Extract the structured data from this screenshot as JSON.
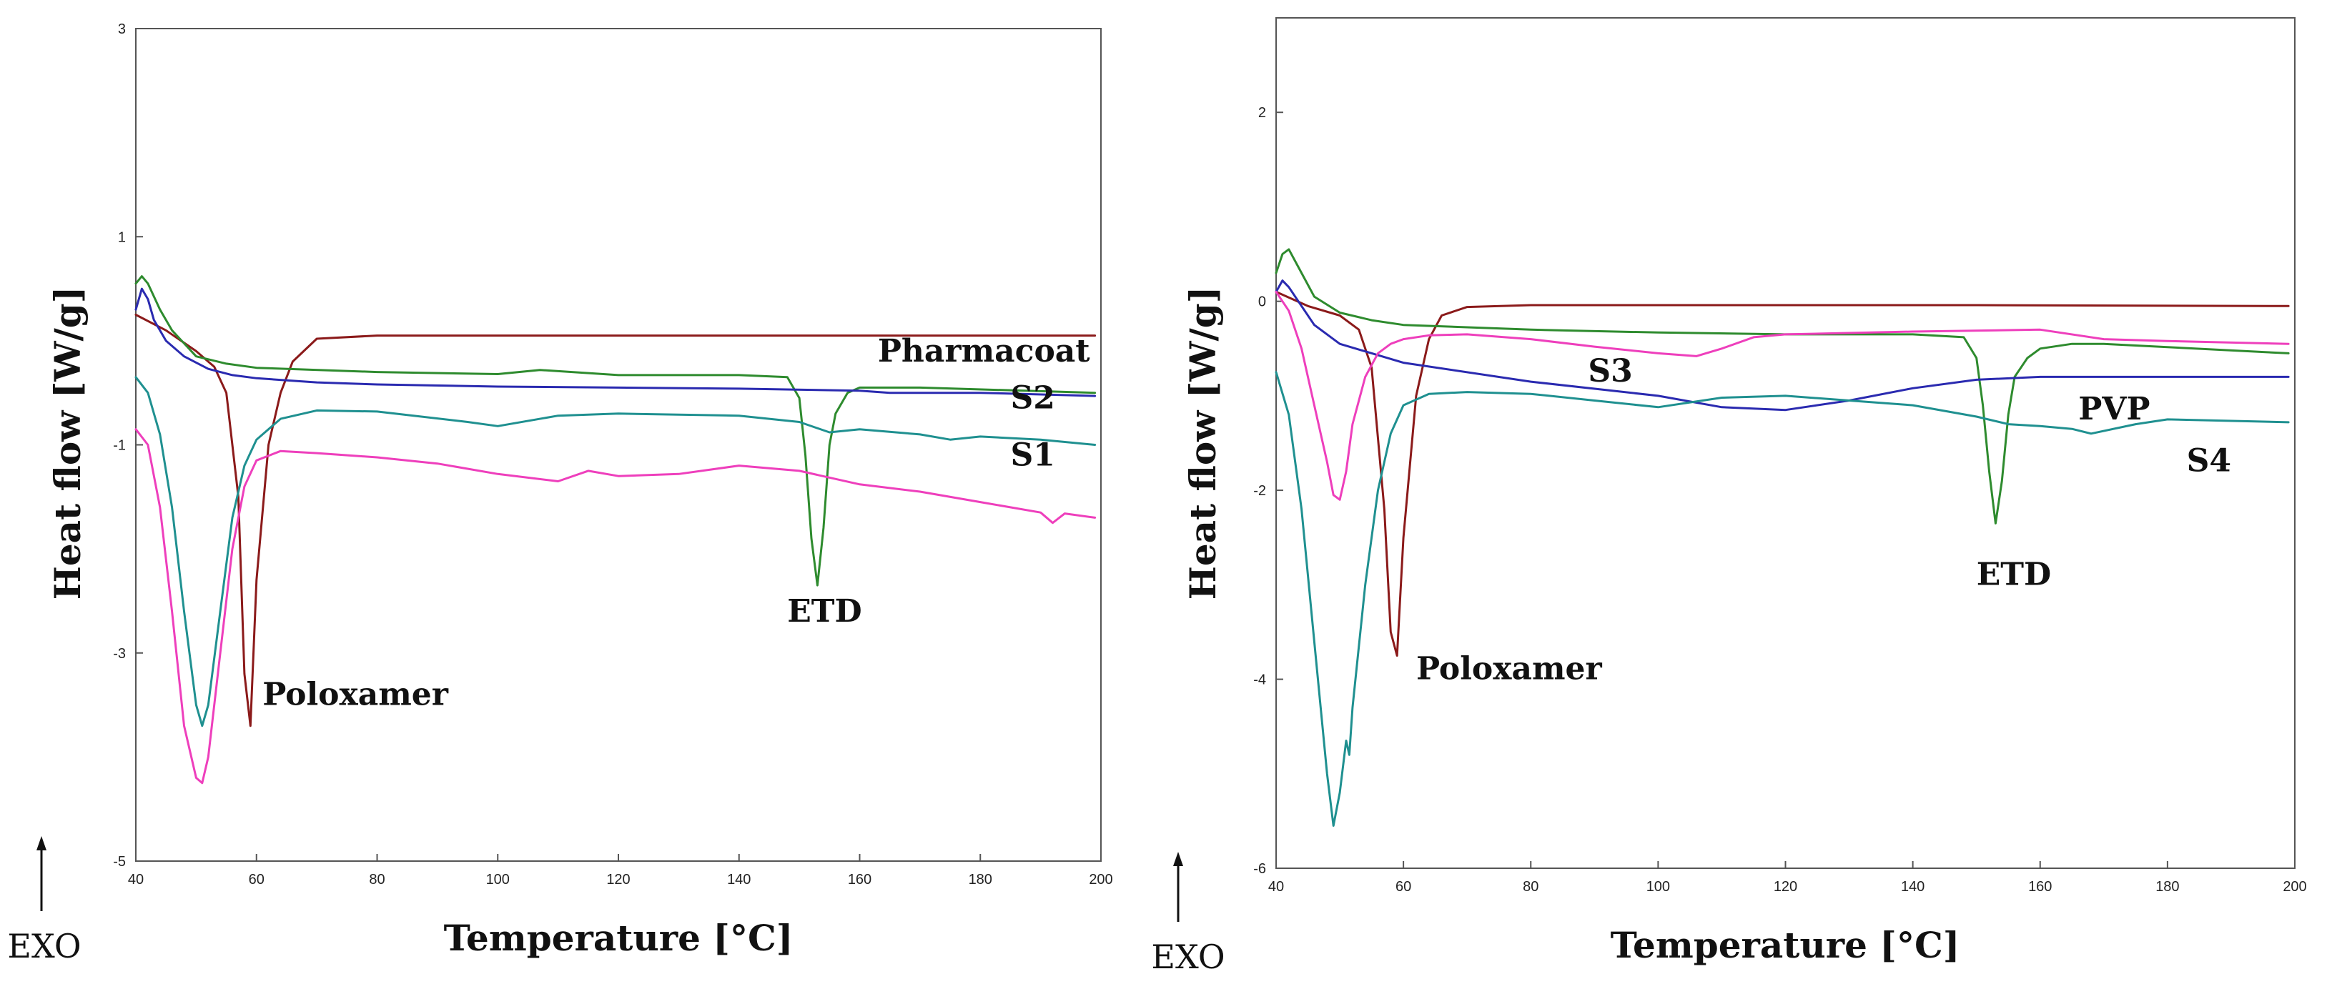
{
  "chart_data": [
    {
      "type": "line",
      "xlabel": "Temperature [°C]",
      "ylabel": "Heat flow [W/g]",
      "xlim": [
        40,
        200
      ],
      "ylim": [
        -5,
        3
      ],
      "xticks": [
        40,
        60,
        80,
        100,
        120,
        140,
        160,
        180,
        200
      ],
      "yticks": [
        3,
        1,
        -1,
        -3,
        -5
      ],
      "grid": false,
      "exo_label": "EXO",
      "annotations": [
        {
          "text": "Pharmacoat",
          "x": 163,
          "y": -0.2
        },
        {
          "text": "S2",
          "x": 185,
          "y": -0.65
        },
        {
          "text": "S1",
          "x": 185,
          "y": -1.2
        },
        {
          "text": "ETD",
          "x": 148,
          "y": -2.7
        },
        {
          "text": "Poloxamer",
          "x": 61,
          "y": -3.5
        }
      ],
      "series": [
        {
          "name": "Poloxamer",
          "color": "#8b1a1a",
          "x": [
            40,
            45,
            50,
            53,
            55,
            57,
            58,
            59,
            60,
            62,
            64,
            66,
            70,
            80,
            100,
            150,
            199
          ],
          "y": [
            0.25,
            0.1,
            -0.1,
            -0.25,
            -0.5,
            -1.5,
            -3.2,
            -3.7,
            -2.3,
            -1.0,
            -0.5,
            -0.2,
            0.02,
            0.05,
            0.05,
            0.05,
            0.05
          ]
        },
        {
          "name": "ETD",
          "color": "#2e8b2e",
          "x": [
            40,
            41,
            42,
            44,
            46,
            50,
            55,
            60,
            80,
            100,
            107,
            120,
            140,
            148,
            150,
            151,
            152,
            153,
            154,
            155,
            156,
            158,
            160,
            170,
            199
          ],
          "y": [
            0.55,
            0.62,
            0.55,
            0.3,
            0.1,
            -0.15,
            -0.22,
            -0.26,
            -0.3,
            -0.32,
            -0.28,
            -0.33,
            -0.33,
            -0.35,
            -0.55,
            -1.1,
            -1.9,
            -2.35,
            -1.8,
            -1.0,
            -0.7,
            -0.5,
            -0.45,
            -0.45,
            -0.5
          ]
        },
        {
          "name": "Pharmacoat",
          "color": "#2a2ab0",
          "x": [
            40,
            41,
            42,
            43,
            45,
            48,
            52,
            56,
            60,
            70,
            80,
            100,
            120,
            140,
            160,
            165,
            180,
            199
          ],
          "y": [
            0.3,
            0.5,
            0.4,
            0.2,
            0.0,
            -0.15,
            -0.27,
            -0.33,
            -0.36,
            -0.4,
            -0.42,
            -0.44,
            -0.45,
            -0.46,
            -0.48,
            -0.5,
            -0.5,
            -0.53
          ]
        },
        {
          "name": "S2",
          "color": "#1f9090",
          "x": [
            40,
            42,
            44,
            46,
            48,
            50,
            51,
            52,
            54,
            56,
            58,
            60,
            64,
            70,
            80,
            95,
            100,
            110,
            120,
            140,
            150,
            155,
            160,
            170,
            175,
            180,
            190,
            199
          ],
          "y": [
            -0.35,
            -0.5,
            -0.9,
            -1.6,
            -2.6,
            -3.5,
            -3.7,
            -3.5,
            -2.6,
            -1.7,
            -1.2,
            -0.95,
            -0.75,
            -0.67,
            -0.68,
            -0.78,
            -0.82,
            -0.72,
            -0.7,
            -0.72,
            -0.78,
            -0.88,
            -0.85,
            -0.9,
            -0.95,
            -0.92,
            -0.95,
            -1.0
          ]
        },
        {
          "name": "S1",
          "color": "#ee3fbc",
          "x": [
            40,
            42,
            44,
            46,
            48,
            50,
            51,
            52,
            54,
            56,
            58,
            60,
            64,
            70,
            80,
            90,
            100,
            110,
            115,
            120,
            130,
            140,
            150,
            160,
            170,
            180,
            190,
            192,
            194,
            199
          ],
          "y": [
            -0.85,
            -1.0,
            -1.6,
            -2.6,
            -3.7,
            -4.2,
            -4.25,
            -4.0,
            -3.0,
            -2.0,
            -1.4,
            -1.15,
            -1.06,
            -1.08,
            -1.12,
            -1.18,
            -1.28,
            -1.35,
            -1.25,
            -1.3,
            -1.28,
            -1.2,
            -1.25,
            -1.38,
            -1.45,
            -1.55,
            -1.65,
            -1.75,
            -1.66,
            -1.7
          ]
        }
      ]
    },
    {
      "type": "line",
      "xlabel": "Temperature [°C]",
      "ylabel": "Heat flow [W/g]",
      "xlim": [
        40,
        200
      ],
      "ylim": [
        -6,
        3
      ],
      "xticks": [
        40,
        60,
        80,
        100,
        120,
        140,
        160,
        180,
        200
      ],
      "yticks": [
        2,
        0,
        -2,
        -4,
        -6
      ],
      "grid": false,
      "exo_label": "EXO",
      "annotations": [
        {
          "text": "S3",
          "x": 89,
          "y": -0.85
        },
        {
          "text": "PVP",
          "x": 166,
          "y": -1.25
        },
        {
          "text": "S4",
          "x": 183,
          "y": -1.8
        },
        {
          "text": "ETD",
          "x": 150,
          "y": -3.0
        },
        {
          "text": "Poloxamer",
          "x": 62,
          "y": -4.0
        }
      ],
      "series": [
        {
          "name": "Poloxamer",
          "color": "#8b1a1a",
          "x": [
            40,
            45,
            50,
            53,
            55,
            57,
            58,
            59,
            60,
            62,
            64,
            66,
            70,
            80,
            100,
            150,
            199
          ],
          "y": [
            0.1,
            -0.05,
            -0.15,
            -0.3,
            -0.7,
            -2.2,
            -3.5,
            -3.75,
            -2.5,
            -1.0,
            -0.4,
            -0.15,
            -0.06,
            -0.04,
            -0.04,
            -0.04,
            -0.05
          ]
        },
        {
          "name": "ETD",
          "color": "#2e8b2e",
          "x": [
            40,
            41,
            42,
            44,
            46,
            50,
            55,
            60,
            80,
            100,
            120,
            140,
            148,
            150,
            151,
            152,
            153,
            154,
            155,
            156,
            158,
            160,
            165,
            170,
            199
          ],
          "y": [
            0.3,
            0.5,
            0.55,
            0.3,
            0.05,
            -0.12,
            -0.2,
            -0.25,
            -0.3,
            -0.33,
            -0.35,
            -0.35,
            -0.38,
            -0.6,
            -1.1,
            -1.8,
            -2.35,
            -1.9,
            -1.2,
            -0.8,
            -0.6,
            -0.5,
            -0.45,
            -0.45,
            -0.55
          ]
        },
        {
          "name": "PVP",
          "color": "#2a2ab0",
          "x": [
            40,
            41,
            42,
            44,
            46,
            50,
            60,
            80,
            100,
            110,
            120,
            130,
            140,
            150,
            160,
            170,
            180,
            199
          ],
          "y": [
            0.1,
            0.22,
            0.15,
            -0.05,
            -0.25,
            -0.45,
            -0.65,
            -0.85,
            -1.0,
            -1.12,
            -1.15,
            -1.05,
            -0.92,
            -0.83,
            -0.8,
            -0.8,
            -0.8,
            -0.8
          ]
        },
        {
          "name": "S4",
          "color": "#1f9090",
          "x": [
            40,
            42,
            44,
            46,
            48,
            49,
            50,
            51,
            51.5,
            52,
            54,
            56,
            58,
            60,
            64,
            70,
            80,
            90,
            100,
            110,
            120,
            130,
            140,
            150,
            155,
            160,
            165,
            168,
            175,
            180,
            199
          ],
          "y": [
            -0.75,
            -1.2,
            -2.2,
            -3.6,
            -5.0,
            -5.55,
            -5.2,
            -4.65,
            -4.8,
            -4.3,
            -3.0,
            -2.0,
            -1.4,
            -1.1,
            -0.98,
            -0.96,
            -0.98,
            -1.05,
            -1.12,
            -1.02,
            -1.0,
            -1.05,
            -1.1,
            -1.22,
            -1.3,
            -1.32,
            -1.35,
            -1.4,
            -1.3,
            -1.25,
            -1.28
          ]
        },
        {
          "name": "S3",
          "color": "#ee3fbc",
          "x": [
            40,
            42,
            44,
            46,
            48,
            49,
            50,
            51,
            52,
            54,
            56,
            58,
            60,
            64,
            70,
            80,
            90,
            100,
            106,
            110,
            115,
            120,
            140,
            160,
            170,
            180,
            199
          ],
          "y": [
            0.1,
            -0.1,
            -0.5,
            -1.1,
            -1.7,
            -2.05,
            -2.1,
            -1.8,
            -1.3,
            -0.8,
            -0.55,
            -0.45,
            -0.4,
            -0.36,
            -0.35,
            -0.4,
            -0.48,
            -0.55,
            -0.58,
            -0.5,
            -0.38,
            -0.35,
            -0.32,
            -0.3,
            -0.4,
            -0.42,
            -0.45
          ]
        }
      ]
    }
  ]
}
